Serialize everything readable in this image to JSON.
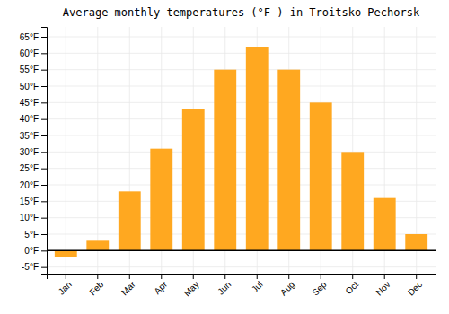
{
  "chart_data": {
    "type": "bar",
    "title": "Average monthly temperatures (°F ) in Troitsko-Pechorsk",
    "categories": [
      "Jan",
      "Feb",
      "Mar",
      "Apr",
      "May",
      "Jun",
      "Jul",
      "Aug",
      "Sep",
      "Oct",
      "Nov",
      "Dec"
    ],
    "values": [
      -2,
      3,
      18,
      31,
      43,
      55,
      62,
      55,
      45,
      30,
      16,
      5
    ],
    "color": "#FFA820",
    "ylim": [
      -7,
      68
    ],
    "yticks": [
      {
        "value": -5,
        "label": "-5°F"
      },
      {
        "value": 0,
        "label": "0°F"
      },
      {
        "value": 5,
        "label": "5°F"
      },
      {
        "value": 10,
        "label": "10°F"
      },
      {
        "value": 15,
        "label": "15°F"
      },
      {
        "value": 20,
        "label": "20°F"
      },
      {
        "value": 25,
        "label": "25°F"
      },
      {
        "value": 30,
        "label": "30°F"
      },
      {
        "value": 35,
        "label": "35°F"
      },
      {
        "value": 40,
        "label": "40°F"
      },
      {
        "value": 45,
        "label": "45°F"
      },
      {
        "value": 50,
        "label": "50°F"
      },
      {
        "value": 55,
        "label": "55°F"
      },
      {
        "value": 60,
        "label": "60°F"
      },
      {
        "value": 65,
        "label": "65°F"
      }
    ],
    "grid": true
  }
}
